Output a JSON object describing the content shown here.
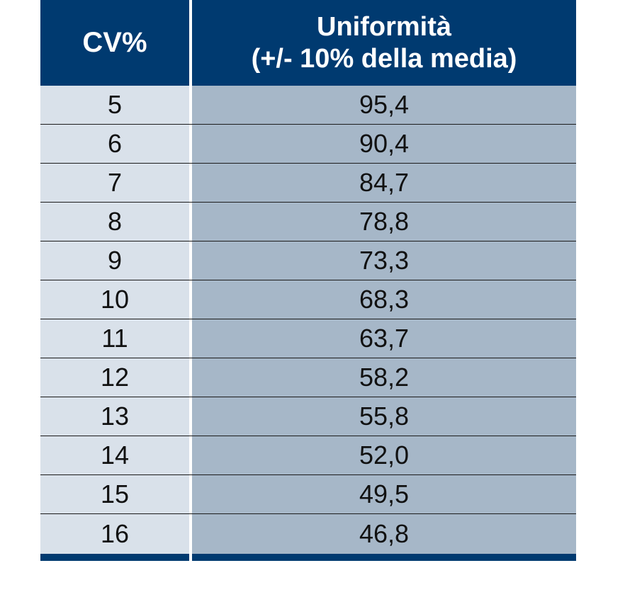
{
  "table": {
    "headers": {
      "col1": "CV%",
      "col2_line1": "Uniformità",
      "col2_line2": "(+/- 10% della media)"
    },
    "rows": [
      {
        "cv": "5",
        "uniformity": "95,4"
      },
      {
        "cv": "6",
        "uniformity": "90,4"
      },
      {
        "cv": "7",
        "uniformity": "84,7"
      },
      {
        "cv": "8",
        "uniformity": "78,8"
      },
      {
        "cv": "9",
        "uniformity": "73,3"
      },
      {
        "cv": "10",
        "uniformity": "68,3"
      },
      {
        "cv": "11",
        "uniformity": "63,7"
      },
      {
        "cv": "12",
        "uniformity": "58,2"
      },
      {
        "cv": "13",
        "uniformity": "55,8"
      },
      {
        "cv": "14",
        "uniformity": "52,0"
      },
      {
        "cv": "15",
        "uniformity": "49,5"
      },
      {
        "cv": "16",
        "uniformity": "46,8"
      }
    ]
  },
  "colors": {
    "header_bg": "#003a70",
    "col1_bg": "#d9e1ea",
    "col2_bg": "#a6b7c8"
  }
}
